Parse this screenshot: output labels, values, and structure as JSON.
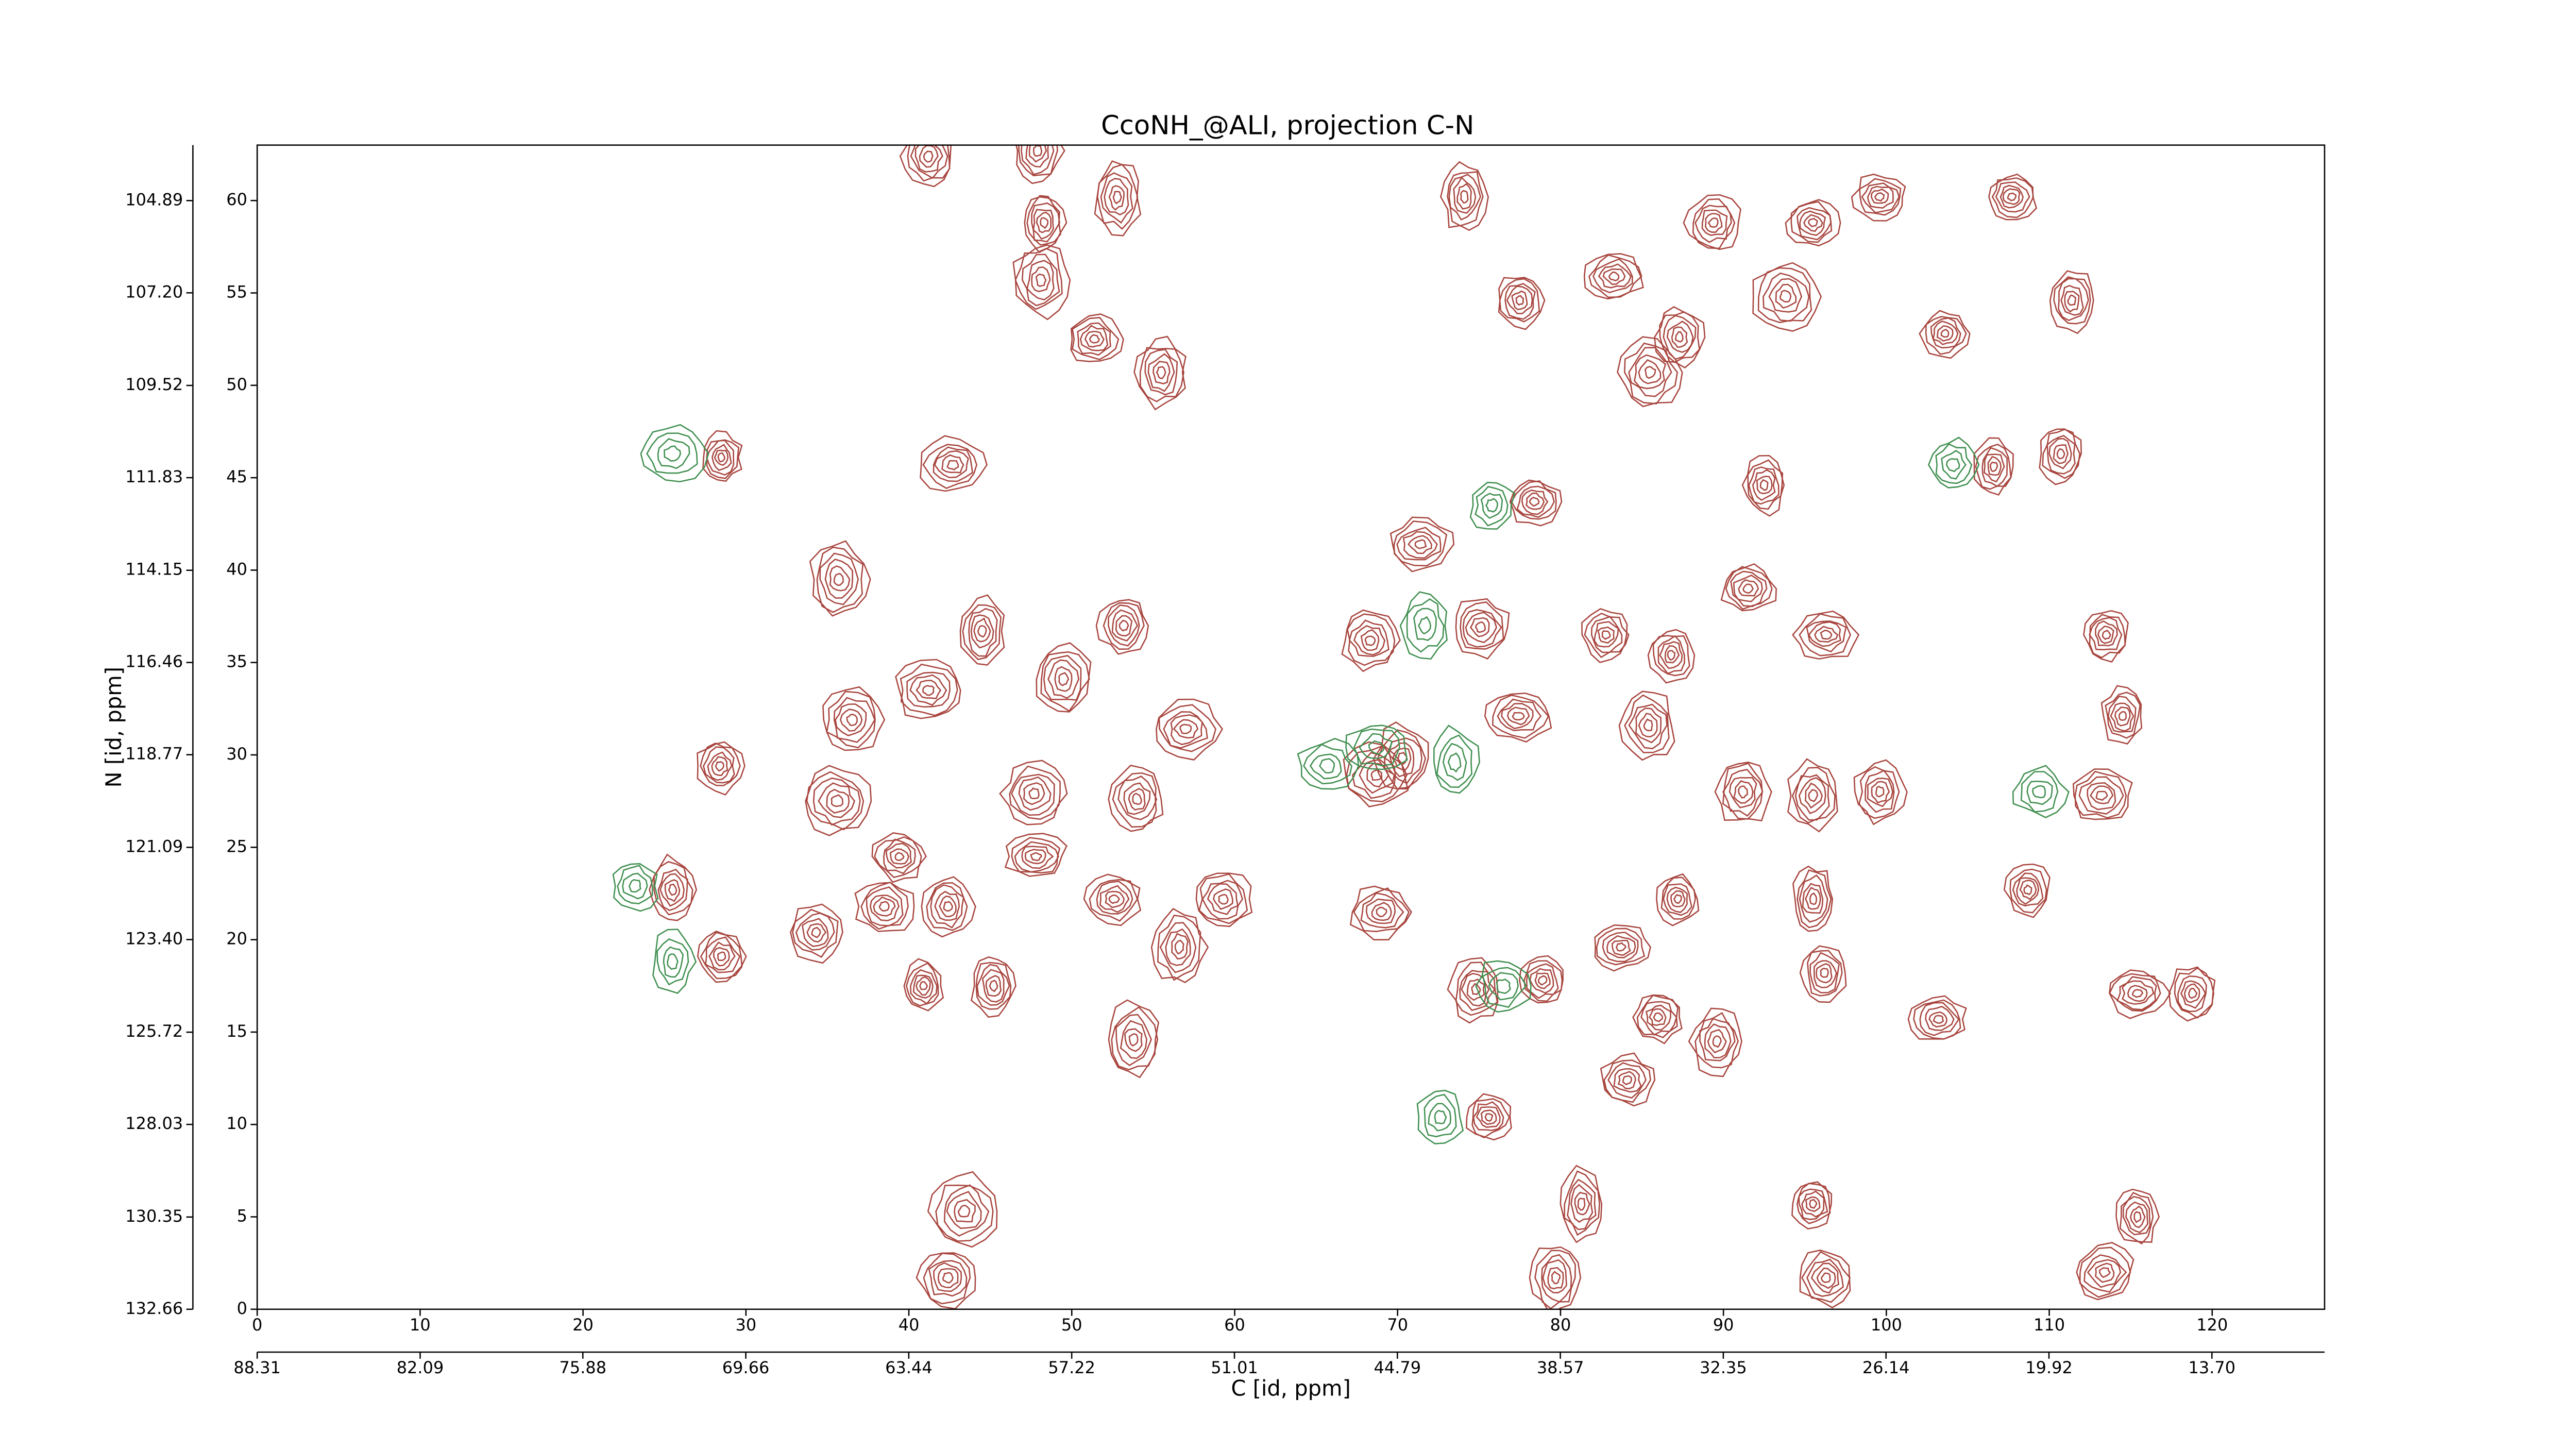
{
  "chart_data": {
    "type": "contour",
    "title": "CcoNH_@ALI, projection C-N",
    "xlabel": "C [id, ppm]",
    "ylabel": "N [id, ppm]",
    "xlim": [
      0,
      126.9
    ],
    "ylim": [
      0,
      63
    ],
    "xticks": [
      0,
      10,
      20,
      30,
      40,
      50,
      60,
      70,
      80,
      90,
      100,
      110,
      120
    ],
    "yticks": [
      0,
      5,
      10,
      15,
      20,
      25,
      30,
      35,
      40,
      45,
      50,
      55,
      60
    ],
    "x2lim": [
      88.31,
      9.4
    ],
    "x2ticks": [
      88.31,
      82.09,
      75.88,
      69.66,
      63.44,
      57.22,
      51.01,
      44.79,
      38.57,
      32.35,
      26.14,
      19.92,
      {
        "value": 13.7,
        "label": "13.70"
      }
    ],
    "y2lim": [
      132.66,
      103.5
    ],
    "y2ticks": [
      132.66,
      130.35,
      128.03,
      125.72,
      {
        "value": 123.4,
        "label": "123.40"
      },
      121.09,
      118.77,
      116.46,
      114.15,
      111.83,
      109.52,
      {
        "value": 107.2,
        "label": "107.20"
      },
      104.89
    ],
    "contours": [
      {
        "color": "#a8453e",
        "x": [
          28.5,
          42.7,
          48.3,
          48.1,
          55.5,
          51.4,
          35.7,
          44.5,
          53.2,
          49.5,
          41.2,
          36.5,
          28.4,
          35.6,
          47.7,
          54,
          57,
          39.4,
          38.5,
          42.4,
          47.8,
          52.6,
          59.3,
          56.6,
          25.5,
          28.5,
          34.3,
          40.9,
          45.2,
          53.8,
          43.4,
          42.4,
          47.9,
          41.2,
          52.8,
          68.3,
          71.4,
          68.7,
          70.3,
          69,
          75.1,
          77.4,
          78.4,
          77.5,
          83.3,
          85.5,
          87.3,
          89.4,
          74.1,
          92.5,
          82.8,
          86.8,
          96.3,
          91.5,
          95.5,
          93.8,
          99.6,
          103.6,
          107.7,
          111.4,
          113.5,
          114.5,
          113.2,
          106.6,
          110.7,
          87.2,
          83.7,
          78.9,
          74.8,
          86,
          89.6,
          84.1,
          75.6,
          95.5,
          96.2,
          103.2,
          108.7,
          115.4,
          118.8,
          115.4,
          113.4,
          96.3,
          81.3,
          79.7,
          95.5,
          99.6,
          91.2,
          95.5,
          85.4
        ],
        "y": [
          46.1,
          45.7,
          58.8,
          55.7,
          50.7,
          52.5,
          39.5,
          36.7,
          37,
          34.1,
          33.5,
          31.9,
          29.4,
          27.5,
          27.9,
          27.6,
          31.4,
          24.5,
          21.8,
          21.8,
          24.5,
          22.2,
          22.2,
          19.6,
          22.7,
          19.1,
          20.4,
          17.5,
          17.5,
          14.6,
          5.3,
          1.7,
          62.7,
          62.4,
          60.2,
          36.2,
          41.4,
          28.9,
          29.8,
          21.5,
          36.9,
          32.1,
          43.7,
          54.6,
          55.9,
          50.7,
          52.6,
          58.8,
          60.2,
          44.6,
          36.5,
          35.4,
          36.5,
          39,
          58.8,
          54.8,
          60.2,
          52.8,
          60.2,
          54.6,
          36.5,
          32.1,
          27.8,
          45.6,
          46.3,
          22.2,
          19.6,
          17.8,
          17.3,
          15.8,
          14.5,
          12.4,
          10.4,
          22.2,
          18.2,
          15.7,
          22.7,
          17.1,
          17.1,
          5,
          2,
          1.7,
          5.7,
          1.7,
          5.7,
          28,
          28,
          27.8,
          31.6
        ]
      },
      {
        "color": "#3f8f4f",
        "x": [
          25.5,
          23.2,
          25.5,
          68.7,
          73.5,
          75.8,
          104.1,
          109.4,
          72.6,
          76.5,
          71.7,
          65.7
        ],
        "y": [
          46.3,
          22.9,
          18.8,
          30.4,
          29.6,
          43.5,
          45.7,
          28,
          10.4,
          17.5,
          37,
          29.4
        ]
      }
    ]
  }
}
